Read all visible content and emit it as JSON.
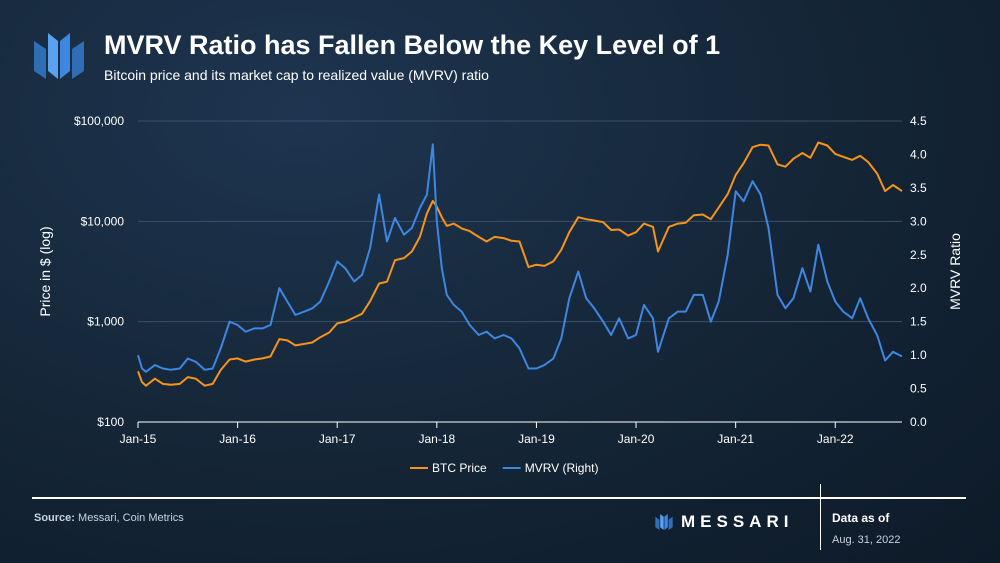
{
  "header": {
    "title": "MVRV Ratio has Fallen Below the Key Level of 1",
    "subtitle": "Bitcoin price and its market cap to realized value (MVRV) ratio"
  },
  "footer": {
    "source_label": "Source:",
    "source_text": "Messari, Coin Metrics",
    "brand": "MESSARI",
    "asof_label": "Data as of",
    "asof_date": "Aug. 31, 2022"
  },
  "chart_data": {
    "type": "line",
    "title": "MVRV Ratio has Fallen Below the Key Level of 1",
    "subtitle": "Bitcoin price and its market cap to realized value (MVRV) ratio",
    "xlabel": "",
    "ylabel_left": "Price in $ (log)",
    "ylabel_right": "MVRV Ratio",
    "x_range": [
      2015.0,
      2022.67
    ],
    "x_ticks": [
      "Jan-15",
      "Jan-16",
      "Jan-17",
      "Jan-18",
      "Jan-19",
      "Jan-20",
      "Jan-21",
      "Jan-22"
    ],
    "y_left": {
      "scale": "log",
      "range": [
        100,
        100000
      ],
      "ticks": [
        "$100",
        "$1,000",
        "$10,000",
        "$100,000"
      ]
    },
    "y_right": {
      "scale": "linear",
      "range": [
        0,
        4.5
      ],
      "ticks": [
        "0.0",
        "0.5",
        "1.0",
        "1.5",
        "2.0",
        "2.5",
        "3.0",
        "3.5",
        "4.0",
        "4.5"
      ]
    },
    "grid": true,
    "legend_position": "bottom",
    "colors": {
      "btc": "#f7931a",
      "mvrv": "#3f86e0",
      "grid": "#3a5068"
    },
    "series": [
      {
        "name": "BTC Price",
        "axis": "left",
        "x": [
          2015.0,
          2015.04,
          2015.08,
          2015.17,
          2015.25,
          2015.33,
          2015.42,
          2015.5,
          2015.58,
          2015.67,
          2015.75,
          2015.83,
          2015.92,
          2016.0,
          2016.08,
          2016.17,
          2016.25,
          2016.33,
          2016.42,
          2016.5,
          2016.58,
          2016.67,
          2016.75,
          2016.83,
          2016.92,
          2017.0,
          2017.08,
          2017.17,
          2017.25,
          2017.33,
          2017.42,
          2017.5,
          2017.58,
          2017.67,
          2017.75,
          2017.83,
          2017.9,
          2017.96,
          2018.0,
          2018.05,
          2018.1,
          2018.17,
          2018.25,
          2018.33,
          2018.42,
          2018.5,
          2018.58,
          2018.67,
          2018.75,
          2018.83,
          2018.92,
          2019.0,
          2019.08,
          2019.17,
          2019.25,
          2019.33,
          2019.42,
          2019.5,
          2019.58,
          2019.67,
          2019.75,
          2019.83,
          2019.92,
          2020.0,
          2020.08,
          2020.17,
          2020.22,
          2020.33,
          2020.42,
          2020.5,
          2020.58,
          2020.67,
          2020.75,
          2020.83,
          2020.92,
          2021.0,
          2021.08,
          2021.17,
          2021.25,
          2021.33,
          2021.42,
          2021.5,
          2021.58,
          2021.67,
          2021.75,
          2021.83,
          2021.92,
          2022.0,
          2022.08,
          2022.17,
          2022.25,
          2022.33,
          2022.42,
          2022.5,
          2022.58,
          2022.67
        ],
        "values": [
          320,
          250,
          230,
          270,
          240,
          235,
          240,
          280,
          270,
          230,
          240,
          330,
          420,
          430,
          400,
          420,
          430,
          450,
          670,
          650,
          580,
          600,
          620,
          700,
          780,
          960,
          1000,
          1100,
          1200,
          1600,
          2400,
          2500,
          4100,
          4300,
          5000,
          7000,
          12000,
          16000,
          14000,
          11000,
          9000,
          9500,
          8500,
          8000,
          7000,
          6300,
          7000,
          6800,
          6400,
          6300,
          3500,
          3700,
          3600,
          4000,
          5200,
          7800,
          11000,
          10500,
          10200,
          9800,
          8200,
          8300,
          7200,
          7800,
          9500,
          8800,
          5000,
          8800,
          9500,
          9700,
          11500,
          11700,
          10500,
          13700,
          18700,
          29000,
          38000,
          55000,
          58000,
          57000,
          37000,
          35000,
          42000,
          48000,
          43000,
          61000,
          57000,
          47000,
          44000,
          41000,
          45000,
          39000,
          30000,
          20000,
          23000,
          20000
        ]
      },
      {
        "name": "MVRV (Right)",
        "axis": "right",
        "x": [
          2015.0,
          2015.04,
          2015.08,
          2015.17,
          2015.25,
          2015.33,
          2015.42,
          2015.5,
          2015.58,
          2015.67,
          2015.75,
          2015.83,
          2015.92,
          2016.0,
          2016.08,
          2016.17,
          2016.25,
          2016.33,
          2016.42,
          2016.5,
          2016.58,
          2016.67,
          2016.75,
          2016.83,
          2016.92,
          2017.0,
          2017.08,
          2017.17,
          2017.25,
          2017.33,
          2017.42,
          2017.5,
          2017.58,
          2017.67,
          2017.75,
          2017.83,
          2017.9,
          2017.96,
          2018.0,
          2018.05,
          2018.1,
          2018.17,
          2018.25,
          2018.33,
          2018.42,
          2018.5,
          2018.58,
          2018.67,
          2018.75,
          2018.83,
          2018.92,
          2019.0,
          2019.08,
          2019.17,
          2019.25,
          2019.33,
          2019.42,
          2019.5,
          2019.58,
          2019.67,
          2019.75,
          2019.83,
          2019.92,
          2020.0,
          2020.08,
          2020.17,
          2020.22,
          2020.33,
          2020.42,
          2020.5,
          2020.58,
          2020.67,
          2020.75,
          2020.83,
          2020.92,
          2021.0,
          2021.08,
          2021.17,
          2021.25,
          2021.33,
          2021.42,
          2021.5,
          2021.58,
          2021.67,
          2021.75,
          2021.83,
          2021.92,
          2022.0,
          2022.08,
          2022.17,
          2022.25,
          2022.33,
          2022.42,
          2022.5,
          2022.58,
          2022.67
        ],
        "values": [
          1.0,
          0.8,
          0.75,
          0.85,
          0.8,
          0.78,
          0.8,
          0.95,
          0.9,
          0.78,
          0.8,
          1.1,
          1.5,
          1.45,
          1.35,
          1.4,
          1.4,
          1.45,
          2.0,
          1.8,
          1.6,
          1.65,
          1.7,
          1.8,
          2.1,
          2.4,
          2.3,
          2.1,
          2.2,
          2.6,
          3.4,
          2.7,
          3.05,
          2.8,
          2.9,
          3.2,
          3.4,
          4.15,
          3.0,
          2.3,
          1.9,
          1.75,
          1.65,
          1.45,
          1.3,
          1.35,
          1.25,
          1.3,
          1.25,
          1.1,
          0.8,
          0.8,
          0.85,
          0.95,
          1.25,
          1.85,
          2.25,
          1.85,
          1.7,
          1.5,
          1.3,
          1.55,
          1.25,
          1.3,
          1.75,
          1.55,
          1.05,
          1.55,
          1.65,
          1.65,
          1.9,
          1.9,
          1.5,
          1.8,
          2.5,
          3.45,
          3.3,
          3.6,
          3.4,
          2.9,
          1.9,
          1.7,
          1.85,
          2.3,
          1.95,
          2.65,
          2.1,
          1.8,
          1.65,
          1.55,
          1.85,
          1.55,
          1.3,
          0.92,
          1.05,
          0.98
        ]
      }
    ]
  }
}
